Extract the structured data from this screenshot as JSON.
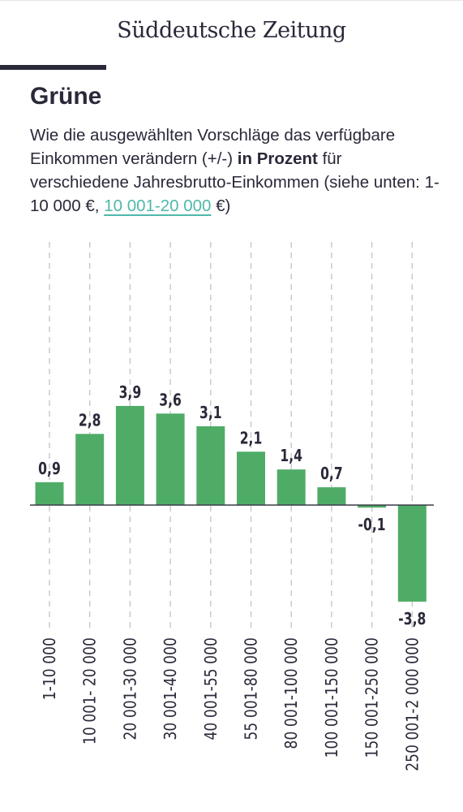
{
  "header": {
    "logo_text": "Süddeutsche Zeitung"
  },
  "title": "Grüne",
  "subtitle": {
    "part1": "Wie die ausgewählten Vorschläge das verfügbare Einkommen verändern (+/-) ",
    "bold": "in Prozent",
    "part2": " für verschiedene Jahresbrutto-Einkommen (siehe unten: 1-10 000 €, ",
    "link": "10 001-20 000",
    "part3": " €)"
  },
  "colors": {
    "bar": "#4fac67",
    "link": "#4fb8a9",
    "text": "#29293a",
    "gridline": "#c4c4c4"
  },
  "chart_data": {
    "type": "bar",
    "categories": [
      "1-10 000",
      "10 001- 20 000",
      "20 001-30 000",
      "30 001-40 000",
      "40 001-55 000",
      "55 001-80 000",
      "80 001-100 000",
      "100 001-150 000",
      "150 001-250 000",
      "250 001-2 000 000"
    ],
    "values": [
      0.9,
      2.8,
      3.9,
      3.6,
      3.1,
      2.1,
      1.4,
      0.7,
      -0.1,
      -3.8
    ],
    "value_labels": [
      "0,9",
      "2,8",
      "3,9",
      "3,6",
      "3,1",
      "2,1",
      "1,4",
      "0,7",
      "-0,1",
      "-3,8"
    ],
    "xlabel": "",
    "ylabel": "",
    "grid": "vertical dashed",
    "legend": "none"
  }
}
